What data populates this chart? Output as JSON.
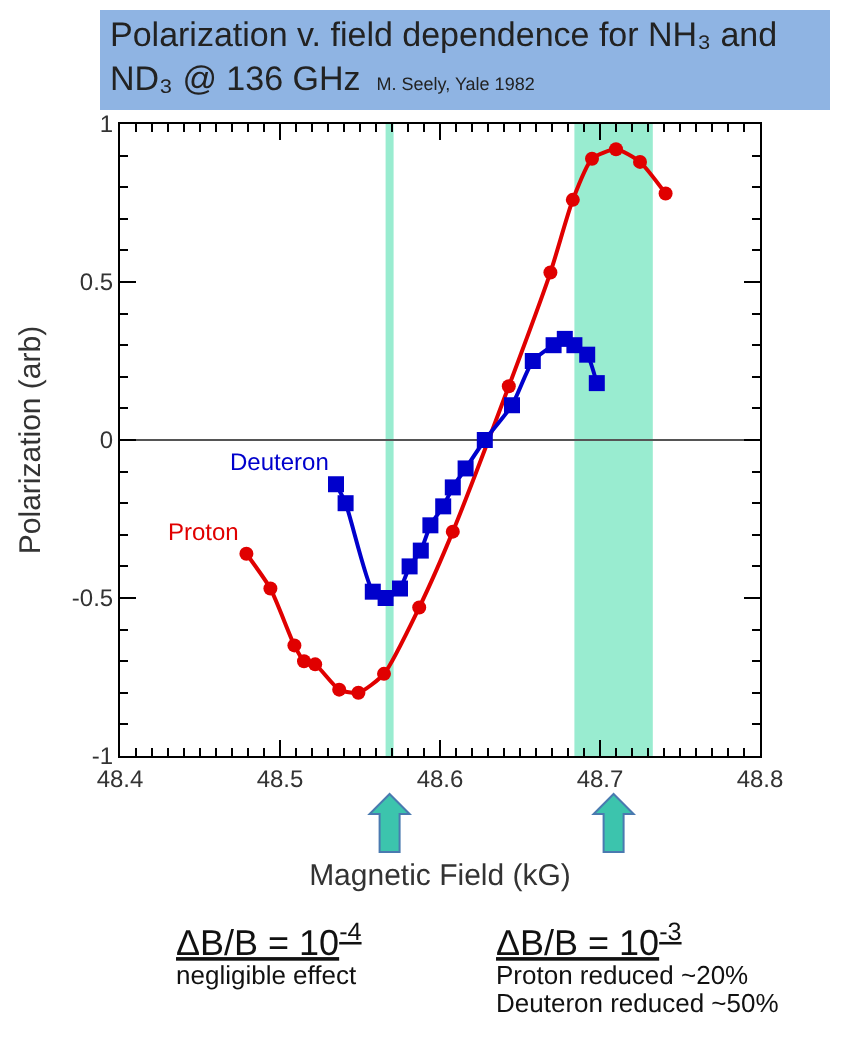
{
  "chart_data": {
    "type": "line",
    "title": "Polarization v. field dependence for NH₃ and ND₃ @ 136 GHz",
    "subtitle": "M. Seely, Yale 1982",
    "xlabel": "Magnetic Field (kG)",
    "ylabel": "Polarization (arb)",
    "xlim": [
      48.4,
      48.8
    ],
    "xticks": [
      48.4,
      48.5,
      48.6,
      48.7,
      48.8
    ],
    "ylim": [
      -1,
      1
    ],
    "yticks": [
      -1,
      -0.5,
      0,
      0.5,
      1
    ],
    "grid": false,
    "legend": false,
    "line_style": "solid",
    "series": [
      {
        "name": "Proton",
        "color": "#e00000",
        "marker": "circle",
        "x": [
          48.479,
          48.494,
          48.509,
          48.515,
          48.522,
          48.537,
          48.549,
          48.565,
          48.587,
          48.608,
          48.643,
          48.669,
          48.683,
          48.695,
          48.71,
          48.725,
          48.741
        ],
        "values": [
          -0.36,
          -0.47,
          -0.65,
          -0.7,
          -0.71,
          -0.79,
          -0.8,
          -0.74,
          -0.53,
          -0.29,
          0.17,
          0.53,
          0.76,
          0.89,
          0.92,
          0.88,
          0.78
        ]
      },
      {
        "name": "Deuteron",
        "color": "#0000cc",
        "marker": "square",
        "x": [
          48.535,
          48.541,
          48.558,
          48.566,
          48.575,
          48.581,
          48.588,
          48.594,
          48.602,
          48.608,
          48.616,
          48.628,
          48.645,
          48.658,
          48.671,
          48.678,
          48.684,
          48.692,
          48.698
        ],
        "values": [
          -0.14,
          -0.2,
          -0.48,
          -0.5,
          -0.47,
          -0.4,
          -0.35,
          -0.27,
          -0.21,
          -0.15,
          -0.09,
          0,
          0.11,
          0.25,
          0.3,
          0.32,
          0.3,
          0.27,
          0.18
        ]
      }
    ],
    "ref_lines": [
      {
        "axis": "y",
        "value": 0,
        "color": "#555555"
      }
    ],
    "bands": [
      {
        "axis": "x",
        "from": 48.566,
        "to": 48.571,
        "color": "#99ecd0"
      },
      {
        "axis": "x",
        "from": 48.684,
        "to": 48.733,
        "color": "#99ecd0"
      }
    ],
    "annotations": [
      "ΔB/B = 10$^{-4}$\nnegligible effect",
      "ΔB/B = 10$^{-3}$\nProton reduced ~20%\nDeuteron reduced ~50%"
    ]
  }
}
